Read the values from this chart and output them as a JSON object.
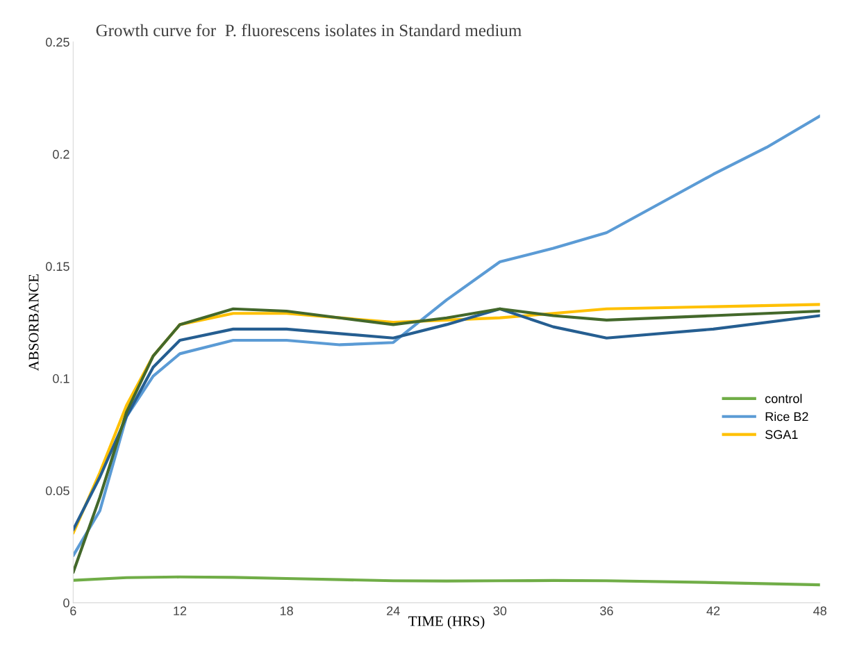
{
  "chart_data": {
    "type": "line",
    "title": "Growth curve for  P. fluorescens isolates in Standard medium",
    "xlabel": "TIME (HRS)",
    "ylabel": "ABSORBANCE",
    "series": [
      {
        "name": "control",
        "color": "#70ad47",
        "x": [
          6,
          9,
          12,
          15,
          18,
          21,
          24,
          27,
          30,
          33,
          36,
          42,
          48
        ],
        "values": [
          0.01,
          0.0112,
          0.0115,
          0.0113,
          0.0108,
          0.0103,
          0.0098,
          0.0097,
          0.0098,
          0.0099,
          0.0098,
          0.009,
          0.008
        ]
      },
      {
        "name": "Rice B2",
        "color": "#5b9bd5",
        "x": [
          6,
          7.5,
          9,
          10.5,
          12,
          15,
          18,
          21,
          24,
          27,
          30,
          33,
          36,
          39,
          42,
          45,
          48
        ],
        "values": [
          0.021,
          0.041,
          0.083,
          0.101,
          0.111,
          0.117,
          0.117,
          0.115,
          0.116,
          0.135,
          0.152,
          0.158,
          0.165,
          0.178,
          0.191,
          0.203,
          0.217
        ]
      },
      {
        "name": "SGA1",
        "color": "#ffc000",
        "x": [
          6,
          7.5,
          9,
          10.5,
          12,
          15,
          18,
          21,
          24,
          27,
          30,
          33,
          36,
          42,
          48
        ],
        "values": [
          0.031,
          0.058,
          0.088,
          0.11,
          0.124,
          0.129,
          0.129,
          0.127,
          0.125,
          0.126,
          0.127,
          0.129,
          0.131,
          0.132,
          0.133
        ]
      },
      {
        "color": "#255e91",
        "x": [
          6,
          7.5,
          9,
          10.5,
          12,
          15,
          18,
          21,
          24,
          27,
          30,
          33,
          36,
          42,
          48
        ],
        "values": [
          0.0325,
          0.056,
          0.083,
          0.105,
          0.117,
          0.122,
          0.122,
          0.12,
          0.118,
          0.124,
          0.131,
          0.123,
          0.118,
          0.122,
          0.128
        ]
      },
      {
        "color": "#43682b",
        "x": [
          6,
          7.5,
          9,
          10.5,
          12,
          15,
          18,
          21,
          24,
          27,
          30,
          33,
          36,
          42,
          48
        ],
        "values": [
          0.0135,
          0.047,
          0.085,
          0.11,
          0.124,
          0.131,
          0.13,
          0.127,
          0.124,
          0.127,
          0.131,
          0.128,
          0.126,
          0.128,
          0.13
        ]
      }
    ],
    "xlim": [
      6,
      48
    ],
    "xticks": [
      6,
      12,
      18,
      24,
      30,
      36,
      42,
      48
    ],
    "ylim": [
      0,
      0.25
    ],
    "yticks": [
      0,
      0.05,
      0.1,
      0.15,
      0.2,
      0.25
    ],
    "grid": false,
    "legend": "right",
    "marker": "none",
    "line_style": "solid"
  }
}
